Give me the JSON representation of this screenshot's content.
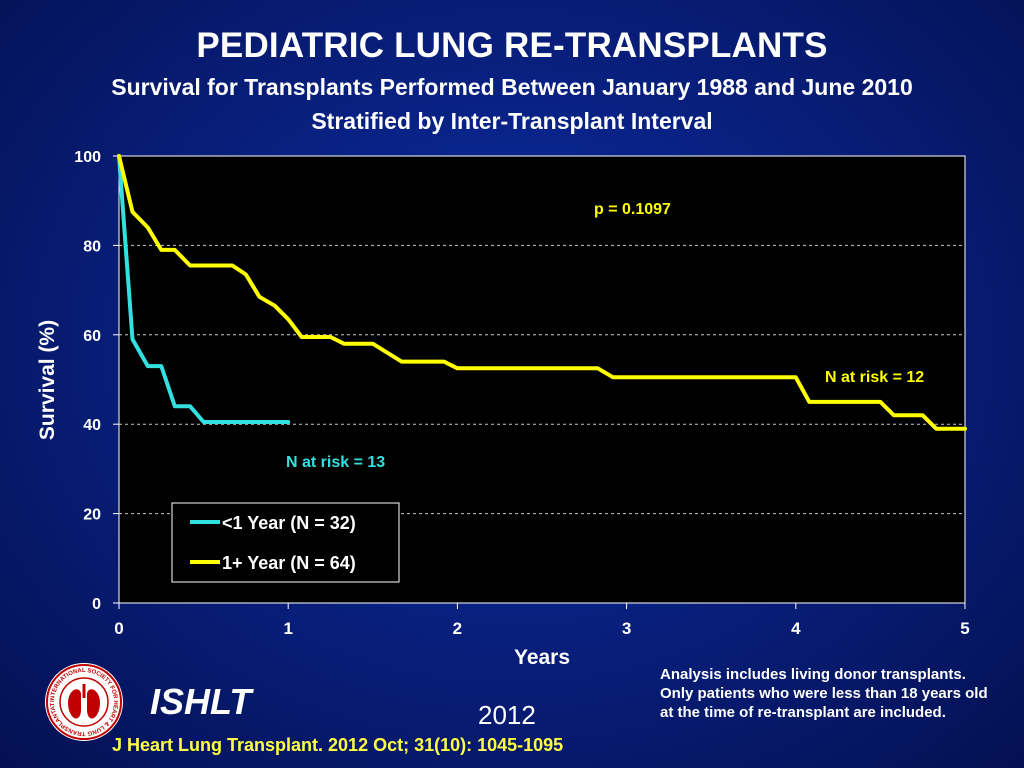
{
  "header": {
    "title": "PEDIATRIC LUNG RE-TRANSPLANTS",
    "subtitle_line1": "Survival for Transplants Performed Between January 1988 and June 2010",
    "subtitle_line2": "Stratified by Inter-Transplant Interval"
  },
  "chart_data": {
    "type": "line",
    "xlabel": "Years",
    "ylabel": "Survival (%)",
    "xlim": [
      0,
      5
    ],
    "ylim": [
      0,
      100
    ],
    "x_ticks": [
      "0",
      "1",
      "2",
      "3",
      "4",
      "5"
    ],
    "y_ticks": [
      "0",
      "20",
      "40",
      "60",
      "80",
      "100"
    ],
    "grid": "horizontal dashed",
    "legend_position": "lower-left",
    "series": [
      {
        "name": "<1 Year (N = 32)",
        "color": "#33e0e0",
        "x": [
          0,
          0.08,
          0.17,
          0.25,
          0.33,
          0.42,
          0.5,
          0.6,
          0.8,
          1.0
        ],
        "y": [
          100,
          59,
          53,
          53,
          44,
          44,
          40.5,
          40.5,
          40.5,
          40.5
        ]
      },
      {
        "name": "1+ Year (N = 64)",
        "color": "#ffff00",
        "x": [
          0,
          0.08,
          0.17,
          0.25,
          0.33,
          0.42,
          0.5,
          0.67,
          0.75,
          0.83,
          0.92,
          1.0,
          1.08,
          1.25,
          1.33,
          1.5,
          1.67,
          1.92,
          2.0,
          2.83,
          2.92,
          4.0,
          4.08,
          4.5,
          4.58,
          4.75,
          4.83,
          5.0
        ],
        "y": [
          100,
          87.5,
          84,
          79,
          79,
          75.5,
          75.5,
          75.5,
          73.5,
          68.5,
          66.5,
          63.5,
          59.5,
          59.5,
          58,
          58,
          54,
          54,
          52.5,
          52.5,
          50.5,
          50.5,
          45,
          45,
          42,
          42,
          39,
          39
        ]
      }
    ],
    "annotations": {
      "p_value": "p = 0.1097",
      "risk_lt1": "N at risk =  13",
      "risk_1plus": "N at risk =  12"
    }
  },
  "footer": {
    "org": "ISHLT",
    "year": "2012",
    "citation": "J Heart Lung Transplant.  2012 Oct; 31(10): 1045-1095",
    "note": "Analysis includes living donor transplants. Only patients who were less than 18 years old at the time of re-transplant are included.",
    "logo_text": "INTERNATIONAL SOCIETY FOR HEART & LUNG TRANSPLANTATION"
  }
}
